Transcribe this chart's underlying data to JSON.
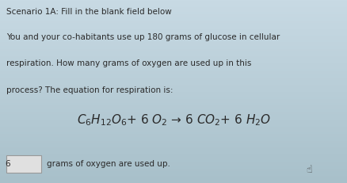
{
  "bg_color": "#b8cdd6",
  "bg_color_top": "#c5d8e2",
  "bg_color_bottom": "#a8bfc8",
  "title_text": "Scenario 1A: Fill in the blank field below",
  "line1": "You and your co-habitants use up 180 grams of glucose in cellular",
  "line2": "respiration. How many grams of oxygen are used up in this",
  "line3": "process? The equation for respiration is:",
  "equation": "$C_6H_{12}O_6$+ 6 $O_2$ → 6 $CO_2$+ 6 $H_2O$",
  "answer_number": "6",
  "answer_text": "grams of oxygen are used up.",
  "text_color": "#2a2a2a",
  "box_color": "#e8e8e8",
  "title_fontsize": 7.5,
  "body_fontsize": 7.5,
  "eq_fontsize": 11,
  "answer_fontsize": 7.5
}
